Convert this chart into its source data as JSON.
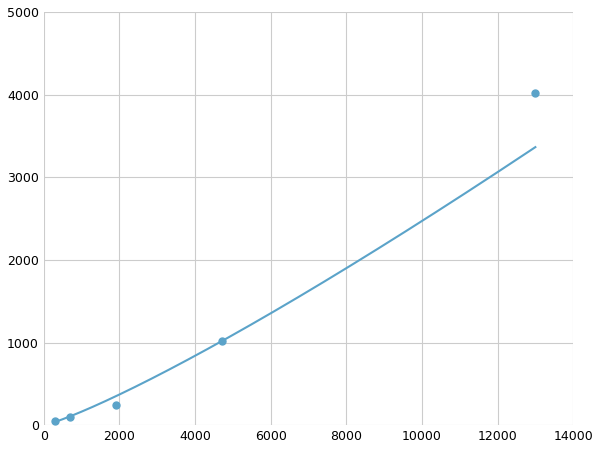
{
  "x_points": [
    300,
    700,
    1900,
    4700,
    13000
  ],
  "y_points": [
    50,
    100,
    250,
    1020,
    4020
  ],
  "line_color": "#5ba3c9",
  "marker_color": "#5ba3c9",
  "marker_size": 5,
  "line_width": 1.5,
  "xlim": [
    0,
    14000
  ],
  "ylim": [
    0,
    5000
  ],
  "xticks": [
    0,
    2000,
    4000,
    6000,
    8000,
    10000,
    12000,
    14000
  ],
  "yticks": [
    0,
    1000,
    2000,
    3000,
    4000,
    5000
  ],
  "grid_color": "#cccccc",
  "background_color": "#ffffff",
  "fig_width": 6.0,
  "fig_height": 4.5
}
